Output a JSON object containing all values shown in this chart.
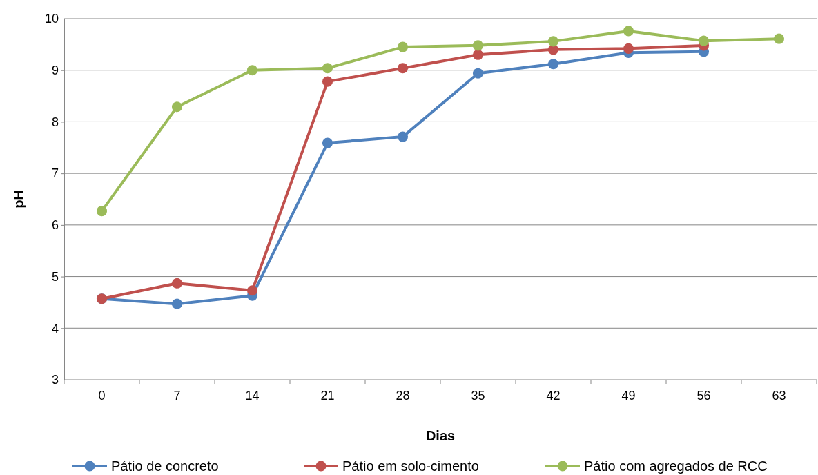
{
  "chart_data": {
    "type": "line",
    "xlabel": "Dias",
    "ylabel": "pH",
    "categories": [
      "0",
      "7",
      "14",
      "21",
      "28",
      "35",
      "42",
      "49",
      "56",
      "63"
    ],
    "ylim": [
      3,
      10
    ],
    "yticks": [
      3,
      4,
      5,
      6,
      7,
      8,
      9,
      10
    ],
    "grid": "y",
    "legend": "bottom",
    "marker": "circle",
    "line_style": "solid",
    "series": [
      {
        "name": "Pátio de concreto",
        "color": "#4f81bd",
        "values": [
          4.57,
          4.47,
          4.63,
          7.59,
          7.71,
          8.94,
          9.12,
          9.34,
          9.36,
          null
        ]
      },
      {
        "name": "Pátio em solo-cimento",
        "color": "#c0504d",
        "values": [
          4.57,
          4.87,
          4.73,
          8.78,
          9.04,
          9.3,
          9.4,
          9.42,
          9.48,
          null
        ]
      },
      {
        "name": "Pátio com agregados de RCC",
        "color": "#9bbb59",
        "values": [
          6.27,
          8.29,
          9.0,
          9.04,
          9.45,
          9.48,
          9.56,
          9.76,
          9.57,
          9.61
        ]
      }
    ]
  }
}
